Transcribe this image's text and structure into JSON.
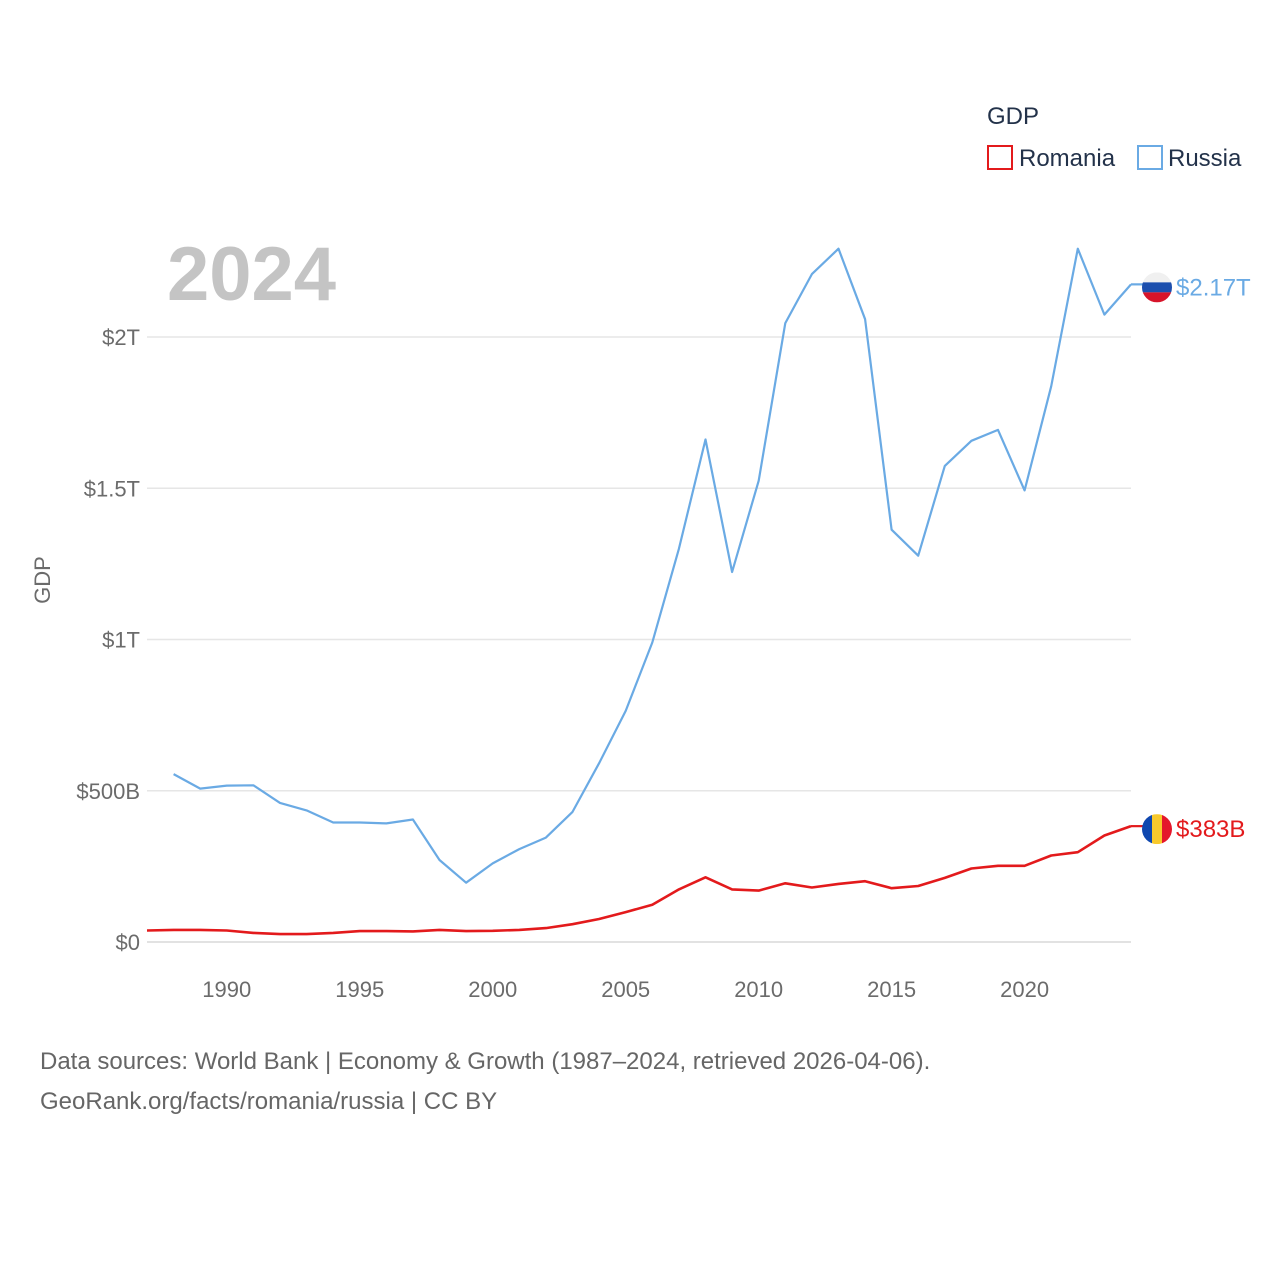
{
  "chart_data": {
    "type": "line",
    "title": "",
    "year_label": "2024",
    "xlabel": "",
    "ylabel": "GDP",
    "xlim": [
      1987,
      2024
    ],
    "ylim": [
      0,
      2300000000000
    ],
    "x_ticks": [
      1990,
      1995,
      2000,
      2005,
      2010,
      2015,
      2020
    ],
    "y_ticks": [
      {
        "value": 0,
        "label": "$0"
      },
      {
        "value": 500000000000,
        "label": "$500B"
      },
      {
        "value": 1000000000000,
        "label": "$1T"
      },
      {
        "value": 1500000000000,
        "label": "$1.5T"
      },
      {
        "value": 2000000000000,
        "label": "$2T"
      }
    ],
    "grid": true,
    "legend": {
      "title": "GDP",
      "position": "top-right"
    },
    "series": [
      {
        "name": "Romania",
        "color": "#e31a1c",
        "end_label": "$383B",
        "flag": "romania-flag",
        "x": [
          1987,
          1988,
          1989,
          1990,
          1991,
          1992,
          1993,
          1994,
          1995,
          1996,
          1997,
          1998,
          1999,
          2000,
          2001,
          2002,
          2003,
          2004,
          2005,
          2006,
          2007,
          2008,
          2009,
          2010,
          2011,
          2012,
          2013,
          2014,
          2015,
          2016,
          2017,
          2018,
          2019,
          2020,
          2021,
          2022,
          2023,
          2024
        ],
        "values": [
          38000000000.0,
          40000000000.0,
          40000000000.0,
          38000000000.0,
          30000000000.0,
          26000000000.0,
          26000000000.0,
          30000000000.0,
          36000000000.0,
          36000000000.0,
          35000000000.0,
          40000000000.0,
          36000000000.0,
          37000000000.0,
          40000000000.0,
          46000000000.0,
          59000000000.0,
          76000000000.0,
          99000000000.0,
          123000000000.0,
          174000000000.0,
          214000000000.0,
          174000000000.0,
          170000000000.0,
          194000000000.0,
          180000000000.0,
          192000000000.0,
          201000000000.0,
          178000000000.0,
          185000000000.0,
          212000000000.0,
          243000000000.0,
          252000000000.0,
          252000000000.0,
          286000000000.0,
          297000000000.0,
          352000000000.0,
          383000000000.0
        ]
      },
      {
        "name": "Russia",
        "color": "#6aaae4",
        "end_label": "$2.17T",
        "flag": "russia-flag",
        "x": [
          1988,
          1989,
          1990,
          1991,
          1992,
          1993,
          1994,
          1995,
          1996,
          1997,
          1998,
          1999,
          2000,
          2001,
          2002,
          2003,
          2004,
          2005,
          2006,
          2007,
          2008,
          2009,
          2010,
          2011,
          2012,
          2013,
          2014,
          2015,
          2016,
          2017,
          2018,
          2019,
          2020,
          2021,
          2022,
          2023,
          2024
        ],
        "values": [
          555000000000.0,
          507000000000.0,
          517000000000.0,
          518000000000.0,
          460000000000.0,
          435000000000.0,
          395000000000.0,
          395000000000.0,
          392000000000.0,
          405000000000.0,
          271000000000.0,
          196000000000.0,
          260000000000.0,
          307000000000.0,
          345000000000.0,
          430000000000.0,
          591000000000.0,
          764000000000.0,
          990000000000.0,
          1300000000000.0,
          1661000000000.0,
          1223000000000.0,
          1525000000000.0,
          2046000000000.0,
          2208000000000.0,
          2292000000000.0,
          2059000000000.0,
          1363000000000.0,
          1277000000000.0,
          1574000000000.0,
          1657000000000.0,
          1693000000000.0,
          1493000000000.0,
          1837000000000.0,
          2292000000000.0,
          2074000000000.0,
          2174000000000.0
        ]
      }
    ]
  },
  "footer": {
    "line1": "Data sources: World Bank | Economy & Growth (1987–2024, retrieved 2026-04-06).",
    "line2": "GeoRank.org/facts/romania/russia | CC BY"
  }
}
